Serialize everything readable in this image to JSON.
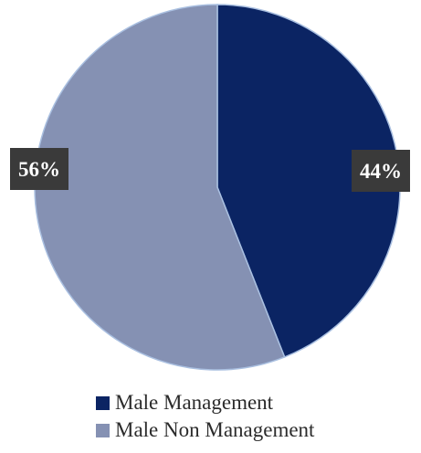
{
  "chart_data": {
    "type": "pie",
    "categories": [
      "Male Management",
      "Male Non Management"
    ],
    "values": [
      44,
      56
    ],
    "data_labels": [
      "44%",
      "56%"
    ],
    "colors": [
      "#0b2463",
      "#8591b3"
    ],
    "legend_position": "bottom",
    "title": ""
  }
}
